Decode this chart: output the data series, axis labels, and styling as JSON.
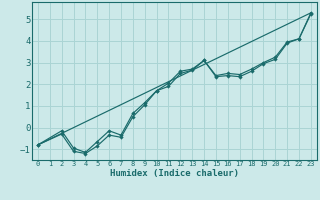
{
  "xlabel": "Humidex (Indice chaleur)",
  "xlim": [
    -0.5,
    23.5
  ],
  "ylim": [
    -1.5,
    5.8
  ],
  "background_color": "#cce9e9",
  "grid_color": "#aad4d4",
  "line_color": "#1a6b6b",
  "xticks": [
    0,
    1,
    2,
    3,
    4,
    5,
    6,
    7,
    8,
    9,
    10,
    11,
    12,
    13,
    14,
    15,
    16,
    17,
    18,
    19,
    20,
    21,
    22,
    23
  ],
  "yticks": [
    -1,
    0,
    1,
    2,
    3,
    4,
    5
  ],
  "line1_x": [
    0,
    2,
    3,
    4,
    5,
    6,
    7,
    8,
    9,
    10,
    11,
    12,
    13,
    14,
    15,
    16,
    17,
    18,
    19,
    20,
    21,
    22,
    23
  ],
  "line1_y": [
    -0.8,
    -0.3,
    -1.1,
    -1.2,
    -0.85,
    -0.35,
    -0.45,
    0.5,
    1.05,
    1.7,
    1.9,
    2.5,
    2.65,
    3.1,
    2.35,
    2.4,
    2.35,
    2.6,
    2.95,
    3.15,
    3.9,
    4.1,
    5.25
  ],
  "line2_x": [
    0,
    2,
    3,
    4,
    5,
    6,
    7,
    8,
    9,
    10,
    11,
    12,
    13,
    14,
    15,
    16,
    17,
    18,
    19,
    20,
    21,
    22,
    23
  ],
  "line2_y": [
    -0.8,
    -0.15,
    -0.95,
    -1.15,
    -0.65,
    -0.15,
    -0.35,
    0.65,
    1.15,
    1.7,
    2.05,
    2.6,
    2.7,
    3.1,
    2.4,
    2.5,
    2.45,
    2.7,
    3.0,
    3.25,
    3.95,
    4.1,
    5.3
  ],
  "line3_x": [
    0,
    23
  ],
  "line3_y": [
    -0.8,
    5.3
  ]
}
